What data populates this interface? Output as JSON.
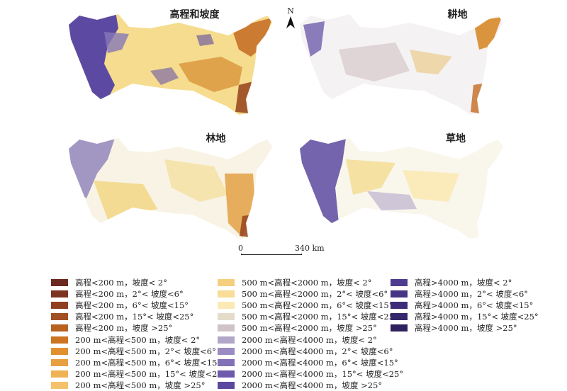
{
  "panels": [
    {
      "title": "高程和坡度"
    },
    {
      "title": "耕地"
    },
    {
      "title": "林地"
    },
    {
      "title": "草地"
    }
  ],
  "north_arrow": {
    "label": "N"
  },
  "scale_bar": {
    "start": "0",
    "end": "340 km"
  },
  "legend": {
    "columns": [
      [
        {
          "label": "高程<200 m，坡度< 2°",
          "color": "#6b2a20"
        },
        {
          "label": "高程<200 m，2°< 坡度<6°",
          "color": "#7d3320"
        },
        {
          "label": "高程<200 m，6°< 坡度<15°",
          "color": "#90401f"
        },
        {
          "label": "高程<200 m，15°< 坡度<25°",
          "color": "#a24f22"
        },
        {
          "label": "高程<200 m，坡度 >25°",
          "color": "#b8621f"
        },
        {
          "label": "200 m<高程<500 m，坡度< 2°",
          "color": "#cc7422"
        },
        {
          "label": "200 m<高程<500 m，2°< 坡度<6°",
          "color": "#e0902f"
        },
        {
          "label": "200 m<高程<500 m，6°< 坡度<15°",
          "color": "#e89f3f"
        },
        {
          "label": "200 m<高程<500 m，15°< 坡度<25°",
          "color": "#efb255"
        },
        {
          "label": "200 m<高程<500 m，坡度 >25°",
          "color": "#f3c26a"
        }
      ],
      [
        {
          "label": "500 m<高程<2000 m，坡度< 2°",
          "color": "#f6cf7e"
        },
        {
          "label": "500 m<高程<2000 m，2°< 坡度<6°",
          "color": "#f8dc98"
        },
        {
          "label": "500 m<高程<2000 m，6°< 坡度<15°",
          "color": "#fbeab6"
        },
        {
          "label": "500 m<高程<2000 m，15°< 坡度<25°",
          "color": "#e4dcc9"
        },
        {
          "label": "500 m<高程<2000 m，坡度 >25°",
          "color": "#cfc3c6"
        },
        {
          "label": "2000 m<高程<4000 m，坡度< 2°",
          "color": "#b2a6c9"
        },
        {
          "label": "2000 m<高程<4000 m，2°< 坡度<6°",
          "color": "#9a8cc2"
        },
        {
          "label": "2000 m<高程<4000 m，6°< 坡度<15°",
          "color": "#8271b6"
        },
        {
          "label": "2000 m<高程<4000 m，15°< 坡度<25°",
          "color": "#6d5aab"
        },
        {
          "label": "2000 m<高程<4000 m，坡度 >25°",
          "color": "#5b489e"
        }
      ],
      [
        {
          "label": "高程>4000 m，坡度< 2°",
          "color": "#4f3c91"
        },
        {
          "label": "高程>4000 m，2°< 坡度<6°",
          "color": "#463585"
        },
        {
          "label": "高程>4000 m，6°< 坡度<15°",
          "color": "#3d2d78"
        },
        {
          "label": "高程>4000 m，15°< 坡度<25°",
          "color": "#35276b"
        },
        {
          "label": "高程>4000 m，坡度 >25°",
          "color": "#2e215d"
        }
      ]
    ]
  }
}
